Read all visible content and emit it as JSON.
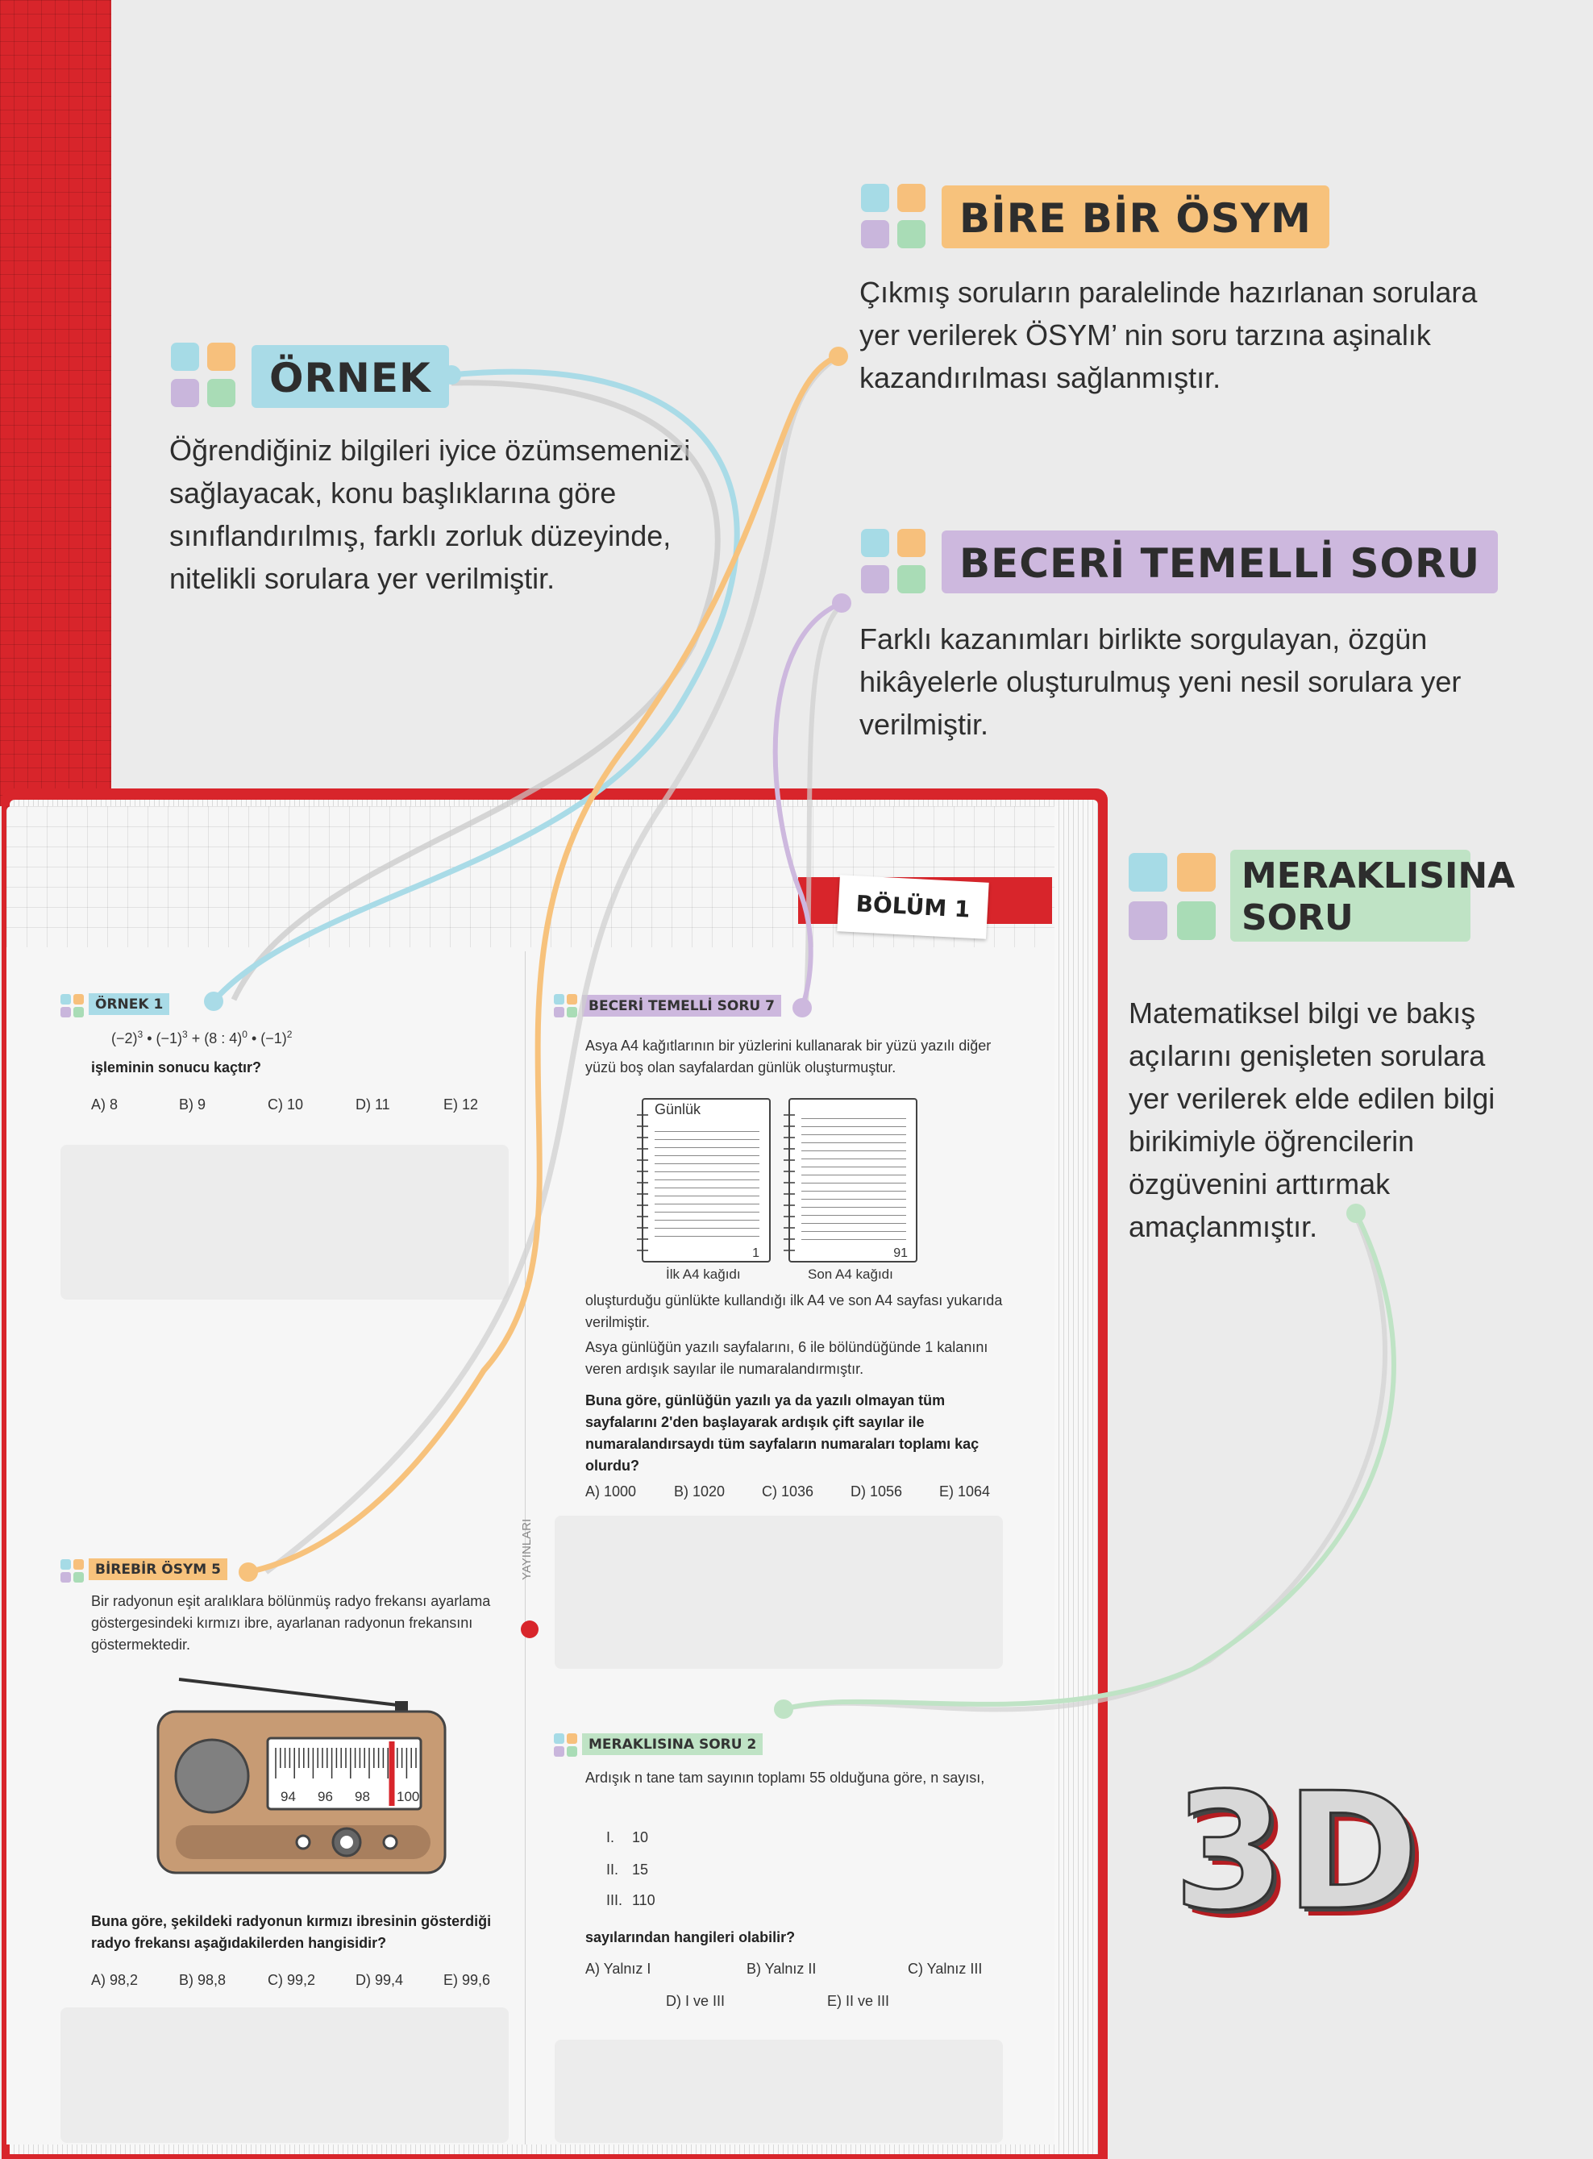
{
  "callouts": {
    "ornek": {
      "title": "ÖRNEK",
      "text": "Öğrendiğiniz bilgileri iyice özümsemenizi sağlayacak, konu başlıklarına göre sınıflandırılmış, farklı zorluk düzeyinde, nitelikli sorulara yer verilmiştir.",
      "color": "#a9dbe7"
    },
    "birebir": {
      "title": "BİRE BİR ÖSYM",
      "text": "Çıkmış soruların paralelinde hazırlanan sorulara yer verilerek ÖSYM’ nin soru tarzına aşinalık kazandırılması sağlanmıştır.",
      "color": "#f7c27c"
    },
    "beceri": {
      "title": "BECERİ TEMELLİ SORU",
      "text": "Farklı kazanımları birlikte sorgulayan, özgün hikâyelerle oluşturulmuş yeni nesil sorulara yer verilmiştir.",
      "color": "#cdb8de"
    },
    "merak": {
      "title1": "MERAKLISINA",
      "title2": "SORU",
      "text": "Matematiksel bilgi ve bakış açılarını genişleten sorulara yer verilerek elde edilen bilgi birikimiyle öğrencilerin özgüvenini arttırmak amaçlanmıştır.",
      "color": "#bfe3c5"
    }
  },
  "icon_colors": {
    "cyan": "#a6dbe6",
    "orange": "#f7c07c",
    "purple": "#c9b6dc",
    "green": "#a9dcb6"
  },
  "book": {
    "chapter": "BÖLÜM 1",
    "publisher_vertical": "YAYINLARI",
    "ornek1": {
      "tag": "ÖRNEK 1",
      "expr_prefix": "(−2)",
      "expr_exp1": "3",
      "expr_mid": " • (−1)",
      "expr_exp2": "3",
      "expr_mid2": " + (8 : 4)",
      "expr_exp3": "0",
      "expr_mid3": " • (−1)",
      "expr_exp4": "2",
      "question": "işleminin sonucu kaçtır?",
      "options": [
        "A) 8",
        "B) 9",
        "C) 10",
        "D) 11",
        "E) 12"
      ]
    },
    "birebir5": {
      "tag": "BİREBİR ÖSYM 5",
      "text": "Bir radyonun eşit aralıklara bölünmüş radyo frekansı ayarlama göstergesindeki kırmızı ibre, ayarlanan radyonun frekansını göstermektedir.",
      "dial_labels": [
        "94",
        "96",
        "98",
        "100"
      ],
      "question": "Buna göre, şekildeki radyonun kırmızı ibresinin gösterdiği radyo frekansı aşağıdakilerden hangisidir?",
      "options": [
        "A) 98,2",
        "B) 98,8",
        "C) 99,2",
        "D) 99,4",
        "E) 99,6"
      ]
    },
    "beceri7": {
      "tag": "BECERİ TEMELLİ SORU 7",
      "text1": "Asya A4 kağıtlarının bir yüzlerini kullanarak bir yüzü yazılı diğer yüzü boş olan sayfalardan günlük oluşturmuştur.",
      "notebook1_title": "Günlük",
      "notebook1_page": "1",
      "notebook1_caption": "İlk A4 kağıdı",
      "notebook2_page": "91",
      "notebook2_caption": "Son A4 kağıdı",
      "text2": "oluşturduğu günlükte kullandığı ilk A4 ve son A4 sayfası yukarıda verilmiştir.",
      "text3": "Asya günlüğün yazılı sayfalarını, 6 ile bölündüğünde 1 kalanını veren ardışık sayılar ile numaralandırmıştır.",
      "question": "Buna göre, günlüğün yazılı ya da yazılı olmayan tüm sayfalarını 2'den başlayarak ardışık çift sayılar ile numaralandırsaydı tüm sayfaların numaraları toplamı kaç olurdu?",
      "options": [
        "A) 1000",
        "B) 1020",
        "C) 1036",
        "D) 1056",
        "E) 1064"
      ]
    },
    "merak2": {
      "tag": "MERAKLISINA SORU 2",
      "text": "Ardışık n tane tam sayının toplamı 55 olduğuna göre, n sayısı,",
      "items": [
        {
          "num": "I.",
          "val": "10"
        },
        {
          "num": "II.",
          "val": "15"
        },
        {
          "num": "III.",
          "val": "110"
        }
      ],
      "question": "sayılarından hangileri olabilir?",
      "options_row1": [
        "A) Yalnız I",
        "B) Yalnız II",
        "C) Yalnız III"
      ],
      "options_row2": [
        "D) I ve III",
        "E) II ve III"
      ]
    }
  },
  "logo": {
    "text": "3D"
  }
}
